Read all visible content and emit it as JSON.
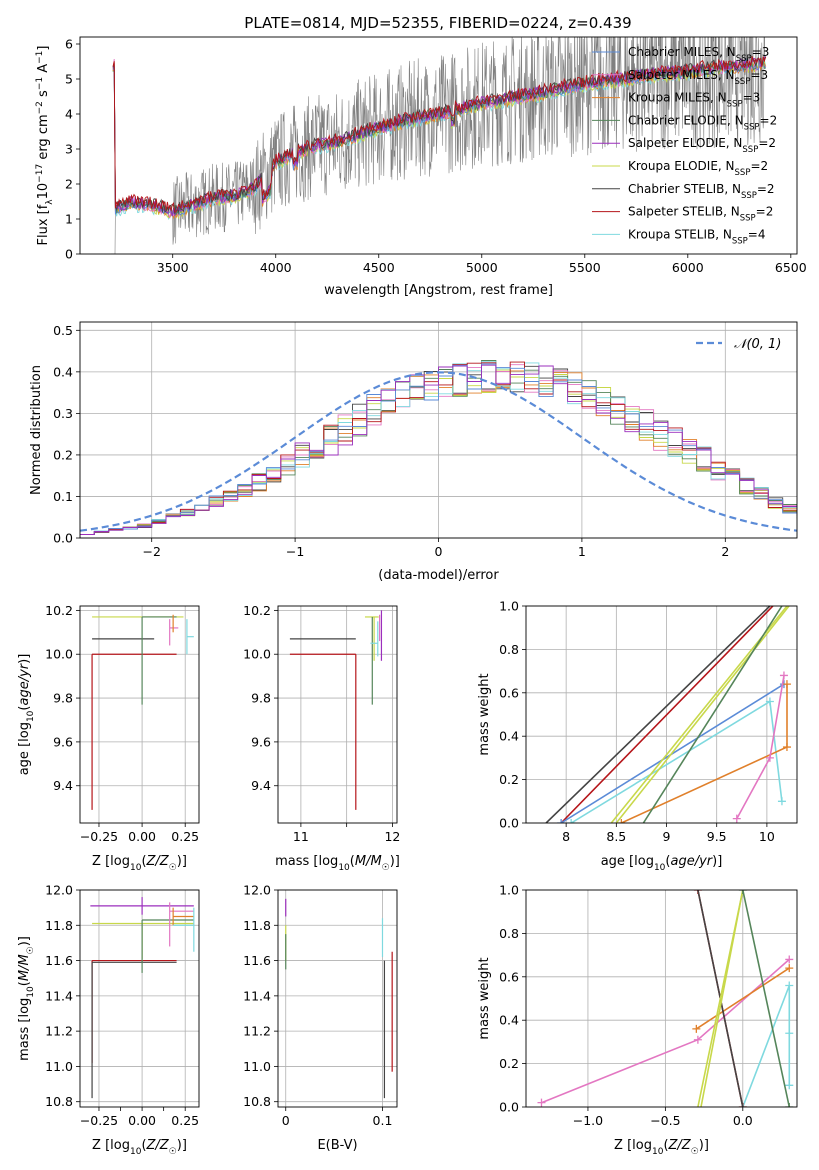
{
  "colors": {
    "chabrier_miles": "#5b8bd7",
    "salpeter_miles": "#e377c2",
    "kroupa_miles": "#e0802b",
    "chabrier_elodie": "#55855a",
    "salpeter_elodie": "#9b2fbd",
    "kroupa_elodie": "#c8d84a",
    "chabrier_stelib": "#444444",
    "salpeter_stelib": "#b5151a",
    "kroupa_stelib": "#7fd9df",
    "data": "#808080"
  },
  "chart_data": [
    {
      "id": "spectrum",
      "type": "line",
      "title": "PLATE=0814, MJD=52355, FIBERID=0224, z=0.439",
      "xlabel": "wavelength [Angstrom, rest frame]",
      "ylabel": "Flux [f_λ 10^-17 erg cm^-2 s^-1 A^-1]",
      "xlim": [
        3050,
        6530
      ],
      "ylim": [
        0,
        6.2
      ],
      "xticks": [
        3500,
        4000,
        4500,
        5000,
        5500,
        6000,
        6500
      ],
      "yticks": [
        0,
        1,
        2,
        3,
        4,
        5,
        6
      ],
      "grid": false,
      "legend_position": "right",
      "legend": [
        {
          "label": "Chabrier MILES, N",
          "sub": "SSP",
          "suffix": "=3",
          "color": "chabrier_miles"
        },
        {
          "label": "Salpeter MILES, N",
          "sub": "SSP",
          "suffix": "=3",
          "color": "salpeter_miles"
        },
        {
          "label": "Kroupa MILES, N",
          "sub": "SSP",
          "suffix": "=3",
          "color": "kroupa_miles"
        },
        {
          "label": "Chabrier ELODIE, N",
          "sub": "SSP",
          "suffix": "=2",
          "color": "chabrier_elodie"
        },
        {
          "label": "Salpeter ELODIE, N",
          "sub": "SSP",
          "suffix": "=2",
          "color": "salpeter_elodie"
        },
        {
          "label": "Kroupa ELODIE, N",
          "sub": "SSP",
          "suffix": "=2",
          "color": "kroupa_elodie"
        },
        {
          "label": "Chabrier STELIB, N",
          "sub": "SSP",
          "suffix": "=2",
          "color": "chabrier_stelib"
        },
        {
          "label": "Salpeter STELIB, N",
          "sub": "SSP",
          "suffix": "=2",
          "color": "salpeter_stelib"
        },
        {
          "label": "Kroupa STELIB, N",
          "sub": "SSP",
          "suffix": "=4",
          "color": "kroupa_stelib"
        }
      ],
      "model_continuum": {
        "x": [
          3220,
          3300,
          3400,
          3500,
          3600,
          3700,
          3800,
          3900,
          4000,
          4100,
          4200,
          4300,
          4400,
          4500,
          4600,
          4700,
          4800,
          4900,
          5000,
          5100,
          5200,
          5300,
          5400,
          5500,
          5600,
          5700,
          5800,
          5900,
          6000,
          6100,
          6200,
          6300,
          6380
        ],
        "y": [
          1.3,
          1.45,
          1.4,
          1.2,
          1.4,
          1.6,
          1.65,
          1.9,
          2.6,
          2.9,
          3.1,
          3.2,
          3.4,
          3.6,
          3.75,
          3.9,
          4.0,
          4.15,
          4.3,
          4.4,
          4.5,
          4.6,
          4.75,
          4.85,
          4.95,
          5.0,
          5.1,
          5.15,
          5.2,
          5.3,
          5.35,
          5.4,
          5.45
        ]
      },
      "data_range": {
        "x": [
          3200,
          6380
        ]
      }
    },
    {
      "id": "residuals",
      "type": "step",
      "xlabel": "(data-model)/error",
      "ylabel": "Normed distribution",
      "xlim": [
        -2.5,
        2.5
      ],
      "ylim": [
        0,
        0.52
      ],
      "xticks": [
        -2,
        -1,
        0,
        1,
        2
      ],
      "yticks": [
        0.0,
        0.1,
        0.2,
        0.3,
        0.4,
        0.5
      ],
      "grid": true,
      "legend_position": "top-right",
      "reference": {
        "label": "𝒩(0, 1)",
        "type": "gaussian",
        "mean": 0,
        "sigma": 1
      },
      "bin_width": 0.1,
      "bin_start": -2.5,
      "base_histogram": [
        0.01,
        0.015,
        0.02,
        0.025,
        0.03,
        0.04,
        0.05,
        0.06,
        0.075,
        0.09,
        0.1,
        0.115,
        0.135,
        0.155,
        0.18,
        0.2,
        0.215,
        0.235,
        0.26,
        0.285,
        0.31,
        0.33,
        0.345,
        0.355,
        0.365,
        0.375,
        0.38,
        0.385,
        0.39,
        0.39,
        0.39,
        0.385,
        0.38,
        0.37,
        0.36,
        0.345,
        0.33,
        0.31,
        0.29,
        0.27,
        0.25,
        0.23,
        0.21,
        0.19,
        0.165,
        0.145,
        0.125,
        0.105,
        0.085,
        0.07,
        0.055
      ]
    },
    {
      "id": "age-vs-Z",
      "type": "errorbar",
      "xlabel": "Z [log10(Z/Z☉)]",
      "ylabel": "age  [log10(age/yr)]",
      "xlim": [
        -0.36,
        0.33
      ],
      "ylim": [
        9.23,
        10.22
      ],
      "xticks": [
        -0.25,
        0.0,
        0.25
      ],
      "xticklabels": [
        "−0.25",
        "0.00",
        "0.25"
      ],
      "yticks": [
        9.4,
        9.6,
        9.8,
        10.0,
        10.2
      ],
      "grid": true
    },
    {
      "id": "age-vs-mass",
      "type": "errorbar",
      "xlabel": "mass [log10(M/M☉)]",
      "xlim": [
        10.75,
        12.05
      ],
      "ylim": [
        9.23,
        10.22
      ],
      "xticks": [
        11,
        11.5,
        12
      ],
      "xticklabels": [
        "11",
        "",
        "12"
      ],
      "yticks": [
        9.4,
        9.6,
        9.8,
        10.0,
        10.2
      ],
      "grid": true
    },
    {
      "id": "massweight-vs-age",
      "type": "line",
      "xlabel": "age  [log10(age/yr)]",
      "ylabel": "mass weight",
      "xlim": [
        7.6,
        10.3
      ],
      "ylim": [
        0,
        1
      ],
      "xticks": [
        8.0,
        8.5,
        9.0,
        9.5,
        10.0
      ],
      "yticks": [
        0.0,
        0.2,
        0.4,
        0.6,
        0.8,
        1.0
      ],
      "grid": true
    },
    {
      "id": "mass-vs-Z",
      "type": "errorbar",
      "xlabel": "Z [log10(Z/Z☉)]",
      "ylabel": "mass [log10(M/M☉)]",
      "xlim": [
        -0.36,
        0.33
      ],
      "ylim": [
        10.77,
        12.0
      ],
      "xticks": [
        -0.25,
        0.0,
        0.25
      ],
      "xticklabels": [
        "−0.25",
        "0.00",
        "0.25"
      ],
      "minor_xticks": [
        -0.125,
        0.125
      ],
      "yticks": [
        10.8,
        11.0,
        11.2,
        11.4,
        11.6,
        11.8,
        12.0
      ],
      "grid": true
    },
    {
      "id": "mass-vs-EBV",
      "type": "errorbar",
      "xlabel": "E(B-V)",
      "xlim": [
        -0.008,
        0.115
      ],
      "ylim": [
        10.77,
        12.0
      ],
      "xticks": [
        0.0,
        0.1
      ],
      "yticks": [
        10.8,
        11.0,
        11.2,
        11.4,
        11.6,
        11.8,
        12.0
      ],
      "grid": true
    },
    {
      "id": "massweight-vs-Z",
      "type": "line",
      "xlabel": "Z [log10(Z/Z☉)]",
      "ylabel": "mass weight",
      "xlim": [
        -1.4,
        0.35
      ],
      "ylim": [
        0,
        1
      ],
      "xticks": [
        -1.0,
        -0.5,
        0.0
      ],
      "xticklabels": [
        "−1.0",
        "−0.5",
        "0.0"
      ],
      "yticks": [
        0.0,
        0.2,
        0.4,
        0.6,
        0.8,
        1.0
      ],
      "grid": true
    }
  ],
  "series": {
    "age_vs_Z": [
      {
        "color": "salpeter_stelib",
        "x": -0.29,
        "y": 10.0,
        "xerr": [
          0.0,
          0.49
        ],
        "yerr": [
          0.71,
          0.0
        ]
      },
      {
        "color": "chabrier_stelib",
        "x": -0.29,
        "y": 10.07,
        "xerr": [
          0.0,
          0.36
        ],
        "yerr": [
          0.0,
          0.0
        ]
      },
      {
        "color": "kroupa_elodie",
        "x": 0.0,
        "y": 10.17,
        "xerr": [
          0.29,
          0.24
        ],
        "yerr": [
          0.0,
          0.0
        ]
      },
      {
        "color": "chabrier_elodie",
        "x": 0.0,
        "y": 10.17,
        "xerr": [
          0.0,
          0.2
        ],
        "yerr": [
          0.4,
          0.0
        ]
      },
      {
        "color": "salpeter_miles",
        "x": 0.16,
        "y": 10.12,
        "xerr": [
          0.0,
          0.05
        ],
        "yerr": [
          0.08,
          0.04
        ]
      },
      {
        "color": "kroupa_miles",
        "x": 0.18,
        "y": 10.15,
        "xerr": [
          0.0,
          0.0
        ],
        "yerr": [
          0.05,
          0.03
        ]
      },
      {
        "color": "kroupa_stelib",
        "x": 0.26,
        "y": 10.08,
        "xerr": [
          0.0,
          0.04
        ],
        "yerr": [
          0.08,
          0.08
        ]
      },
      {
        "color": "chabrier_miles",
        "x": 0.27,
        "y": 10.17,
        "xerr": [
          0.0,
          0.0
        ],
        "yerr": [
          0.0,
          0.0
        ]
      }
    ],
    "age_vs_mass": [
      {
        "color": "salpeter_stelib",
        "x": 11.6,
        "y": 10.0,
        "xerr": [
          0.72,
          0.0
        ],
        "yerr": [
          0.71,
          0.0
        ]
      },
      {
        "color": "chabrier_stelib",
        "x": 11.6,
        "y": 10.07,
        "xerr": [
          0.72,
          0.0
        ],
        "yerr": [
          0.0,
          0.0
        ]
      },
      {
        "color": "kroupa_elodie",
        "x": 11.8,
        "y": 10.17,
        "xerr": [
          0.1,
          0.05
        ],
        "yerr": [
          0.2,
          0.0
        ]
      },
      {
        "color": "chabrier_elodie",
        "x": 11.78,
        "y": 10.12,
        "xerr": [
          0.0,
          0.0
        ],
        "yerr": [
          0.35,
          0.05
        ]
      },
      {
        "color": "salpeter_elodie",
        "x": 11.88,
        "y": 10.15,
        "xerr": [
          0.0,
          0.0
        ],
        "yerr": [
          0.18,
          0.05
        ]
      },
      {
        "color": "kroupa_stelib",
        "x": 11.84,
        "y": 10.05,
        "xerr": [
          0.08,
          0.0
        ],
        "yerr": [
          0.06,
          0.1
        ]
      },
      {
        "color": "salpeter_miles",
        "x": 11.86,
        "y": 10.12,
        "xerr": [
          0.0,
          0.0
        ],
        "yerr": [
          0.06,
          0.06
        ]
      }
    ],
    "mass_vs_Z": [
      {
        "color": "salpeter_stelib",
        "x": -0.29,
        "y": 11.6,
        "xerr": [
          0.0,
          0.49
        ],
        "yerr": [
          0.58,
          0.0
        ]
      },
      {
        "color": "chabrier_stelib",
        "x": -0.29,
        "y": 11.59,
        "xerr": [
          0.0,
          0.49
        ],
        "yerr": [
          0.77,
          0.0
        ]
      },
      {
        "color": "kroupa_elodie",
        "x": 0.0,
        "y": 11.81,
        "xerr": [
          0.29,
          0.3
        ],
        "yerr": [
          0.2,
          0.0
        ]
      },
      {
        "color": "chabrier_elodie",
        "x": 0.0,
        "y": 11.83,
        "xerr": [
          0.0,
          0.3
        ],
        "yerr": [
          0.3,
          0.0
        ]
      },
      {
        "color": "salpeter_elodie",
        "x": 0.0,
        "y": 11.91,
        "xerr": [
          0.3,
          0.3
        ],
        "yerr": [
          0.05,
          0.05
        ]
      },
      {
        "color": "salpeter_miles",
        "x": 0.16,
        "y": 11.88,
        "xerr": [
          0.0,
          0.14
        ],
        "yerr": [
          0.2,
          0.05
        ]
      },
      {
        "color": "kroupa_miles",
        "x": 0.18,
        "y": 11.85,
        "xerr": [
          0.0,
          0.12
        ],
        "yerr": [
          0.05,
          0.05
        ]
      },
      {
        "color": "kroupa_stelib",
        "x": 0.3,
        "y": 11.8,
        "xerr": [
          0.12,
          0.0
        ],
        "yerr": [
          0.15,
          0.1
        ]
      }
    ],
    "mass_vs_EBV": [
      {
        "color": "salpeter_elodie",
        "x": 0.0,
        "y": 11.9,
        "xerr": [
          0.0,
          0.0
        ],
        "yerr": [
          0.05,
          0.05
        ]
      },
      {
        "color": "kroupa_elodie",
        "x": 0.0,
        "y": 11.75,
        "xerr": [
          0.0,
          0.0
        ],
        "yerr": [
          0.15,
          0.05
        ]
      },
      {
        "color": "chabrier_elodie",
        "x": 0.0,
        "y": 11.7,
        "xerr": [
          0.0,
          0.0
        ],
        "yerr": [
          0.15,
          0.05
        ]
      },
      {
        "color": "kroupa_stelib",
        "x": 0.1,
        "y": 11.72,
        "xerr": [
          0.0,
          0.0
        ],
        "yerr": [
          0.1,
          0.12
        ]
      },
      {
        "color": "chabrier_stelib",
        "x": 0.102,
        "y": 11.4,
        "xerr": [
          0.0,
          0.0
        ],
        "yerr": [
          0.58,
          0.2
        ]
      },
      {
        "color": "salpeter_stelib",
        "x": 0.11,
        "y": 11.3,
        "xerr": [
          0.0,
          0.0
        ],
        "yerr": [
          0.33,
          0.35
        ]
      }
    ],
    "weight_vs_age": [
      {
        "color": "chabrier_stelib",
        "x": [
          7.8,
          10.03
        ],
        "y": [
          0.0,
          1.0
        ],
        "marker": false
      },
      {
        "color": "salpeter_stelib",
        "x": [
          7.95,
          10.06
        ],
        "y": [
          0.0,
          1.0
        ],
        "marker": false
      },
      {
        "color": "chabrier_miles",
        "x": [
          7.95,
          10.17
        ],
        "y": [
          0.0,
          0.64
        ],
        "marker": true
      },
      {
        "color": "kroupa_stelib",
        "x": [
          8.05,
          10.03,
          10.15
        ],
        "y": [
          0.0,
          0.56,
          0.1
        ],
        "marker": true
      },
      {
        "color": "kroupa_miles",
        "x": [
          8.55,
          10.2,
          10.2
        ],
        "y": [
          0.0,
          0.35,
          0.64
        ],
        "marker": true
      },
      {
        "color": "kroupa_elodie",
        "x": [
          8.45,
          10.2
        ],
        "y": [
          0.0,
          1.0
        ],
        "marker": false
      },
      {
        "color": "kroupa_elodie",
        "x": [
          8.5,
          10.22
        ],
        "y": [
          0.0,
          1.0
        ],
        "marker": false
      },
      {
        "color": "chabrier_elodie",
        "x": [
          8.77,
          10.15
        ],
        "y": [
          0.0,
          1.0
        ],
        "marker": false
      },
      {
        "color": "salpeter_miles",
        "x": [
          9.7,
          10.03,
          10.17
        ],
        "y": [
          0.02,
          0.3,
          0.68
        ],
        "marker": true
      }
    ],
    "weight_vs_Z": [
      {
        "color": "salpeter_miles",
        "x": [
          -1.3,
          -0.29,
          0.3
        ],
        "y": [
          0.02,
          0.31,
          0.68
        ],
        "marker": true
      },
      {
        "color": "kroupa_miles",
        "x": [
          -0.3,
          0.3
        ],
        "y": [
          0.36,
          0.64
        ],
        "marker": true
      },
      {
        "color": "kroupa_stelib",
        "x": [
          0.0,
          0.3,
          0.3,
          0.3
        ],
        "y": [
          0.0,
          0.56,
          0.34,
          0.1
        ],
        "marker": true
      },
      {
        "color": "salpeter_stelib",
        "x": [
          -0.29,
          0.0
        ],
        "y": [
          1.0,
          0.0
        ],
        "marker": true
      },
      {
        "color": "chabrier_stelib",
        "x": [
          -0.29,
          0.0
        ],
        "y": [
          1.0,
          0.0
        ],
        "marker": false
      },
      {
        "color": "kroupa_elodie",
        "x": [
          -0.29,
          0.0
        ],
        "y": [
          0.0,
          1.0
        ],
        "marker": false
      },
      {
        "color": "kroupa_elodie",
        "x": [
          -0.27,
          0.0
        ],
        "y": [
          0.0,
          1.0
        ],
        "marker": false
      },
      {
        "color": "chabrier_elodie",
        "x": [
          0.0,
          0.3
        ],
        "y": [
          1.0,
          0.0
        ],
        "marker": true
      }
    ]
  }
}
